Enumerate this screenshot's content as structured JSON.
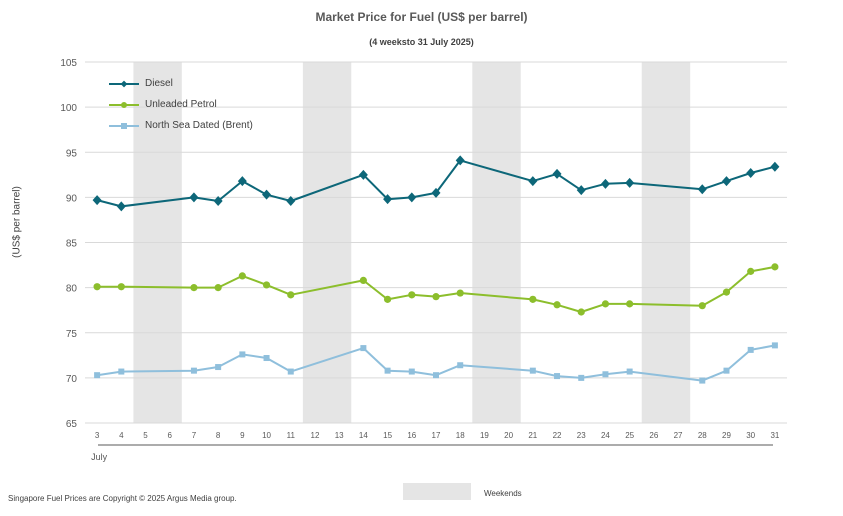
{
  "chart_data": {
    "type": "line",
    "title": "Market Price for Fuel (US$ per barrel)",
    "subtitle": "(4 weeksto 31 July 2025)",
    "ylabel": "(US$ per barrel)",
    "xlabel": "July",
    "ylim": [
      65,
      105
    ],
    "yticks": [
      "65",
      "70",
      "75",
      "80",
      "85",
      "90",
      "95",
      "100",
      "105"
    ],
    "x": [
      "3",
      "4",
      "5",
      "6",
      "7",
      "8",
      "9",
      "10",
      "11",
      "12",
      "13",
      "14",
      "15",
      "16",
      "17",
      "18",
      "19",
      "20",
      "21",
      "22",
      "23",
      "24",
      "25",
      "26",
      "27",
      "28",
      "29",
      "30",
      "31"
    ],
    "weekends": [
      [
        "5",
        "6"
      ],
      [
        "12",
        "13"
      ],
      [
        "19",
        "20"
      ],
      [
        "26",
        "27"
      ]
    ],
    "grid": true,
    "legend_position": "top-left",
    "series": [
      {
        "name": "Diesel",
        "color": "#0d6779",
        "marker": "diamond",
        "values": [
          89.7,
          89.0,
          null,
          null,
          90.0,
          89.6,
          91.8,
          90.3,
          89.6,
          null,
          null,
          92.5,
          89.8,
          90.0,
          90.5,
          94.1,
          null,
          null,
          91.8,
          92.6,
          90.8,
          91.5,
          91.6,
          null,
          null,
          90.9,
          91.8,
          92.7,
          93.4
        ]
      },
      {
        "name": "Unleaded Petrol",
        "color": "#8cbe2c",
        "marker": "circle",
        "values": [
          80.1,
          80.1,
          null,
          null,
          80.0,
          80.0,
          81.3,
          80.3,
          79.2,
          null,
          null,
          80.8,
          78.7,
          79.2,
          79.0,
          79.4,
          null,
          null,
          78.7,
          78.1,
          77.3,
          78.2,
          78.2,
          null,
          null,
          78.0,
          79.5,
          81.8,
          82.3
        ]
      },
      {
        "name": "North Sea Dated (Brent)",
        "color": "#8fbfdc",
        "marker": "square",
        "values": [
          70.3,
          70.7,
          null,
          null,
          70.8,
          71.2,
          72.6,
          72.2,
          70.7,
          null,
          null,
          73.3,
          70.8,
          70.7,
          70.3,
          71.4,
          null,
          null,
          70.8,
          70.2,
          70.0,
          70.4,
          70.7,
          null,
          null,
          69.7,
          70.8,
          73.1,
          73.6
        ]
      }
    ]
  },
  "legend": {
    "weekends_label": "Weekends"
  },
  "footer": "Singapore Fuel Prices are Copyright © 2025 Argus Media group."
}
